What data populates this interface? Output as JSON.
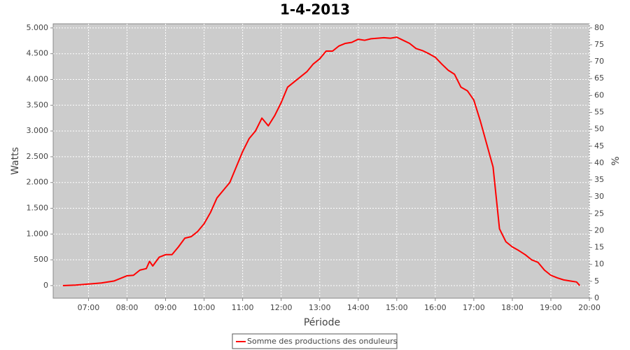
{
  "chart_data": {
    "type": "line",
    "title": "1-4-2013",
    "xlabel": "Période",
    "ylabel": "Watts",
    "y2label": "%",
    "x": [
      "06:20",
      "06:40",
      "07:00",
      "07:20",
      "07:40",
      "08:00",
      "08:10",
      "08:20",
      "08:30",
      "08:35",
      "08:40",
      "08:50",
      "09:00",
      "09:10",
      "09:20",
      "09:30",
      "09:40",
      "09:50",
      "10:00",
      "10:10",
      "10:20",
      "10:30",
      "10:40",
      "10:50",
      "11:00",
      "11:10",
      "11:20",
      "11:30",
      "11:40",
      "11:50",
      "12:00",
      "12:10",
      "12:20",
      "12:30",
      "12:40",
      "12:50",
      "13:00",
      "13:10",
      "13:20",
      "13:30",
      "13:40",
      "13:50",
      "14:00",
      "14:10",
      "14:20",
      "14:30",
      "14:40",
      "14:50",
      "15:00",
      "15:10",
      "15:20",
      "15:30",
      "15:40",
      "15:50",
      "16:00",
      "16:10",
      "16:20",
      "16:30",
      "16:40",
      "16:50",
      "17:00",
      "17:10",
      "17:20",
      "17:30",
      "17:35",
      "17:40",
      "17:50",
      "18:00",
      "18:10",
      "18:20",
      "18:30",
      "18:40",
      "18:50",
      "19:00",
      "19:10",
      "19:20",
      "19:30",
      "19:40",
      "19:45"
    ],
    "series": [
      {
        "name": "Somme des productions des onduleurs",
        "color": "#ff0000",
        "values": [
          0,
          10,
          30,
          50,
          90,
          190,
          200,
          300,
          330,
          470,
          380,
          550,
          600,
          600,
          750,
          920,
          950,
          1050,
          1200,
          1420,
          1700,
          1850,
          2000,
          2300,
          2600,
          2850,
          3000,
          3250,
          3100,
          3300,
          3550,
          3850,
          3950,
          4050,
          4150,
          4300,
          4400,
          4550,
          4550,
          4650,
          4700,
          4720,
          4780,
          4760,
          4790,
          4800,
          4810,
          4800,
          4820,
          4760,
          4700,
          4600,
          4560,
          4500,
          4430,
          4300,
          4180,
          4100,
          3850,
          3780,
          3600,
          3200,
          2750,
          2300,
          1700,
          1100,
          850,
          750,
          680,
          600,
          500,
          450,
          300,
          200,
          150,
          110,
          90,
          70,
          0
        ]
      }
    ],
    "xlim": [
      "06:05",
      "20:00"
    ],
    "xticks": [
      "07:00",
      "08:00",
      "09:00",
      "10:00",
      "11:00",
      "12:00",
      "13:00",
      "14:00",
      "15:00",
      "16:00",
      "17:00",
      "18:00",
      "19:00",
      "20:00"
    ],
    "ylim": [
      -245,
      5080
    ],
    "yticks": [
      0,
      {
        "value": 500,
        "label": "500"
      },
      {
        "value": 1000,
        "label": "1.000"
      },
      {
        "value": 1500,
        "label": "1.500"
      },
      {
        "value": 2000,
        "label": "2.000"
      },
      {
        "value": 2500,
        "label": "2.500"
      },
      {
        "value": 3000,
        "label": "3.000"
      },
      {
        "value": 3500,
        "label": "3.500"
      },
      {
        "value": 4000,
        "label": "4.000"
      },
      {
        "value": 4500,
        "label": "4.500"
      },
      {
        "value": 5000,
        "label": "5.000"
      }
    ],
    "y2lim": [
      0,
      81.2
    ],
    "y2ticks": [
      0,
      5,
      10,
      15,
      20,
      25,
      30,
      35,
      40,
      45,
      50,
      55,
      60,
      65,
      70,
      75,
      80
    ],
    "grid": true,
    "legend": "bottom"
  }
}
